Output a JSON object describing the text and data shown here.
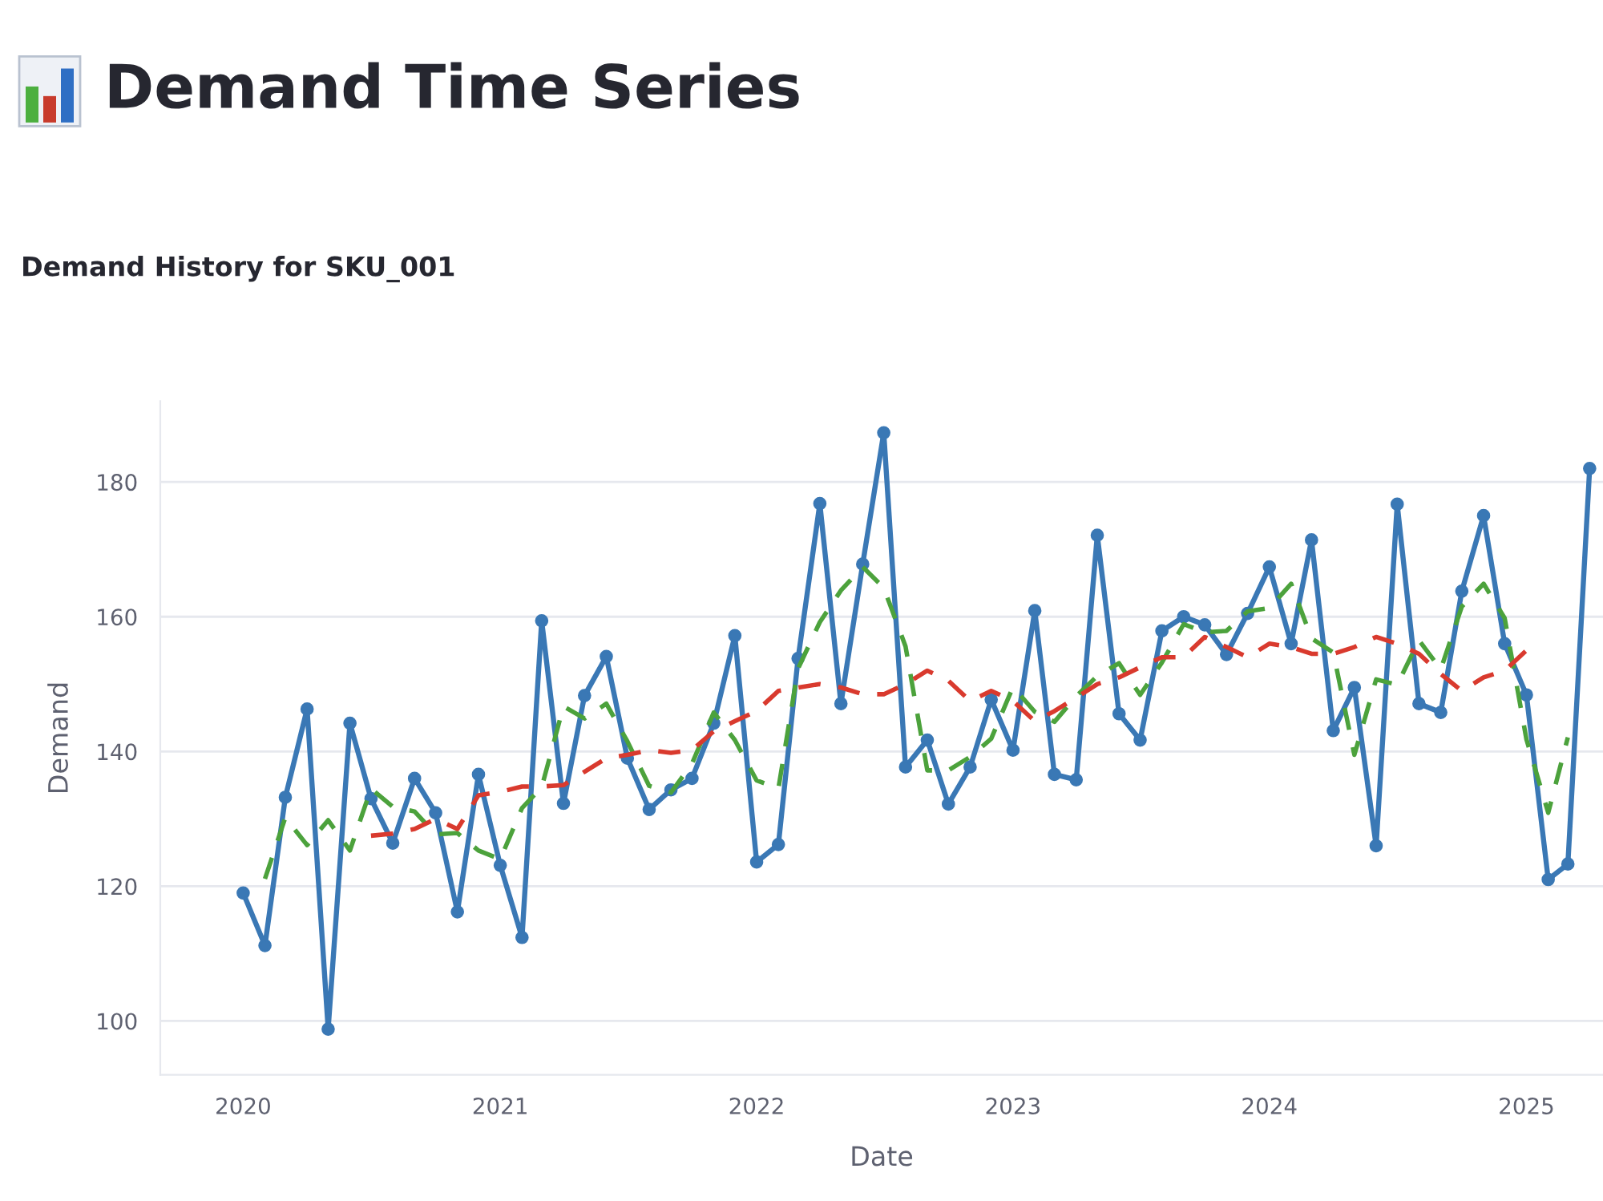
{
  "chart_data": {
    "type": "line",
    "title": "Demand Time Series",
    "subtitle": "Demand History for SKU_001",
    "xlabel": "Date",
    "ylabel": "Demand",
    "x": [
      "2020-01",
      "2020-02",
      "2020-03",
      "2020-04",
      "2020-05",
      "2020-06",
      "2020-07",
      "2020-08",
      "2020-09",
      "2020-10",
      "2020-11",
      "2020-12",
      "2021-01",
      "2021-02",
      "2021-03",
      "2021-04",
      "2021-05",
      "2021-06",
      "2021-07",
      "2021-08",
      "2021-09",
      "2021-10",
      "2021-11",
      "2021-12",
      "2022-01",
      "2022-02",
      "2022-03",
      "2022-04",
      "2022-05",
      "2022-06",
      "2022-07",
      "2022-08",
      "2022-09",
      "2022-10",
      "2022-11",
      "2022-12",
      "2023-01",
      "2023-02",
      "2023-03",
      "2023-04",
      "2023-05",
      "2023-06",
      "2023-07",
      "2023-08",
      "2023-09",
      "2023-10",
      "2023-11",
      "2023-12",
      "2024-01",
      "2024-02",
      "2024-03",
      "2024-04",
      "2024-05",
      "2024-06",
      "2024-07",
      "2024-08",
      "2024-09",
      "2024-10",
      "2024-11",
      "2024-12",
      "2025-01",
      "2025-02",
      "2025-03",
      "2025-04"
    ],
    "series": [
      {
        "color": "#3a78b5",
        "marker": "circle",
        "line_style": "solid",
        "values": [
          119,
          111.2,
          133.2,
          146.3,
          98.8,
          144.2,
          133,
          126.4,
          136,
          130.9,
          116.2,
          136.6,
          123.1,
          112.4,
          159.4,
          132.3,
          148.3,
          154.1,
          139,
          131.4,
          134.3,
          136,
          144.2,
          157.2,
          123.6,
          126.2,
          153.8,
          176.8,
          147.1,
          167.8,
          187.3,
          137.7,
          141.7,
          132.2,
          137.7,
          147.7,
          140.2,
          160.9,
          136.6,
          135.8,
          172.1,
          145.6,
          141.7,
          157.9,
          160,
          158.8,
          154.4,
          160.5,
          167.4,
          156,
          171.4,
          143.1,
          149.5,
          126,
          176.7,
          147.1,
          145.8,
          163.8,
          175,
          156,
          148.4,
          121,
          123.3,
          182
        ]
      },
      {
        "color": "#4ca23c",
        "marker": "none",
        "line_style": "dashed",
        "values": [
          null,
          121.1,
          130.2,
          126.1,
          129.8,
          125.3,
          134.5,
          131.8,
          131.1,
          127.7,
          127.9,
          125.3,
          124,
          131.6,
          134.7,
          146.7,
          144.9,
          147.1,
          141.5,
          134.9,
          133.9,
          138.2,
          145.8,
          141.7,
          135.7,
          134.5,
          152.3,
          159.2,
          163.9,
          167.4,
          164.3,
          155.6,
          137.2,
          137.2,
          139.2,
          141.9,
          149.6,
          145.9,
          144.4,
          148.2,
          151.2,
          153.1,
          148.4,
          153.2,
          158.9,
          157.7,
          157.9,
          160.8,
          161.3,
          164.9,
          156.8,
          154.7,
          139.5,
          150.7,
          149.9,
          156.5,
          152.2,
          161.5,
          164.9,
          159.8,
          141.8,
          130.9,
          142.1,
          null
        ]
      },
      {
        "color": "#d93a2e",
        "marker": "none",
        "line_style": "dashed",
        "values": [
          null,
          null,
          null,
          null,
          null,
          null,
          127.5,
          127.8,
          128.5,
          130,
          128.5,
          133.5,
          134,
          134.8,
          134.8,
          135,
          137,
          139,
          139.5,
          140.2,
          139.8,
          140.2,
          143,
          144.5,
          146,
          149,
          149.5,
          150,
          149.5,
          148.5,
          148.5,
          150,
          152,
          150.5,
          147.5,
          149,
          147.5,
          144.5,
          146,
          148,
          150,
          151,
          152.5,
          154,
          154,
          157,
          155.5,
          154,
          156,
          155.5,
          154.5,
          154.5,
          155.5,
          157,
          156,
          154.5,
          151.5,
          149,
          151,
          152,
          155,
          null,
          null,
          null
        ]
      }
    ],
    "xlim": [
      "2019-09-05",
      "2025-04-20"
    ],
    "xticks": [
      "2020",
      "2021",
      "2022",
      "2023",
      "2024",
      "2025"
    ],
    "ylim": [
      92,
      192
    ],
    "yticks": [
      100,
      120,
      140,
      160,
      180
    ],
    "grid": "y"
  }
}
